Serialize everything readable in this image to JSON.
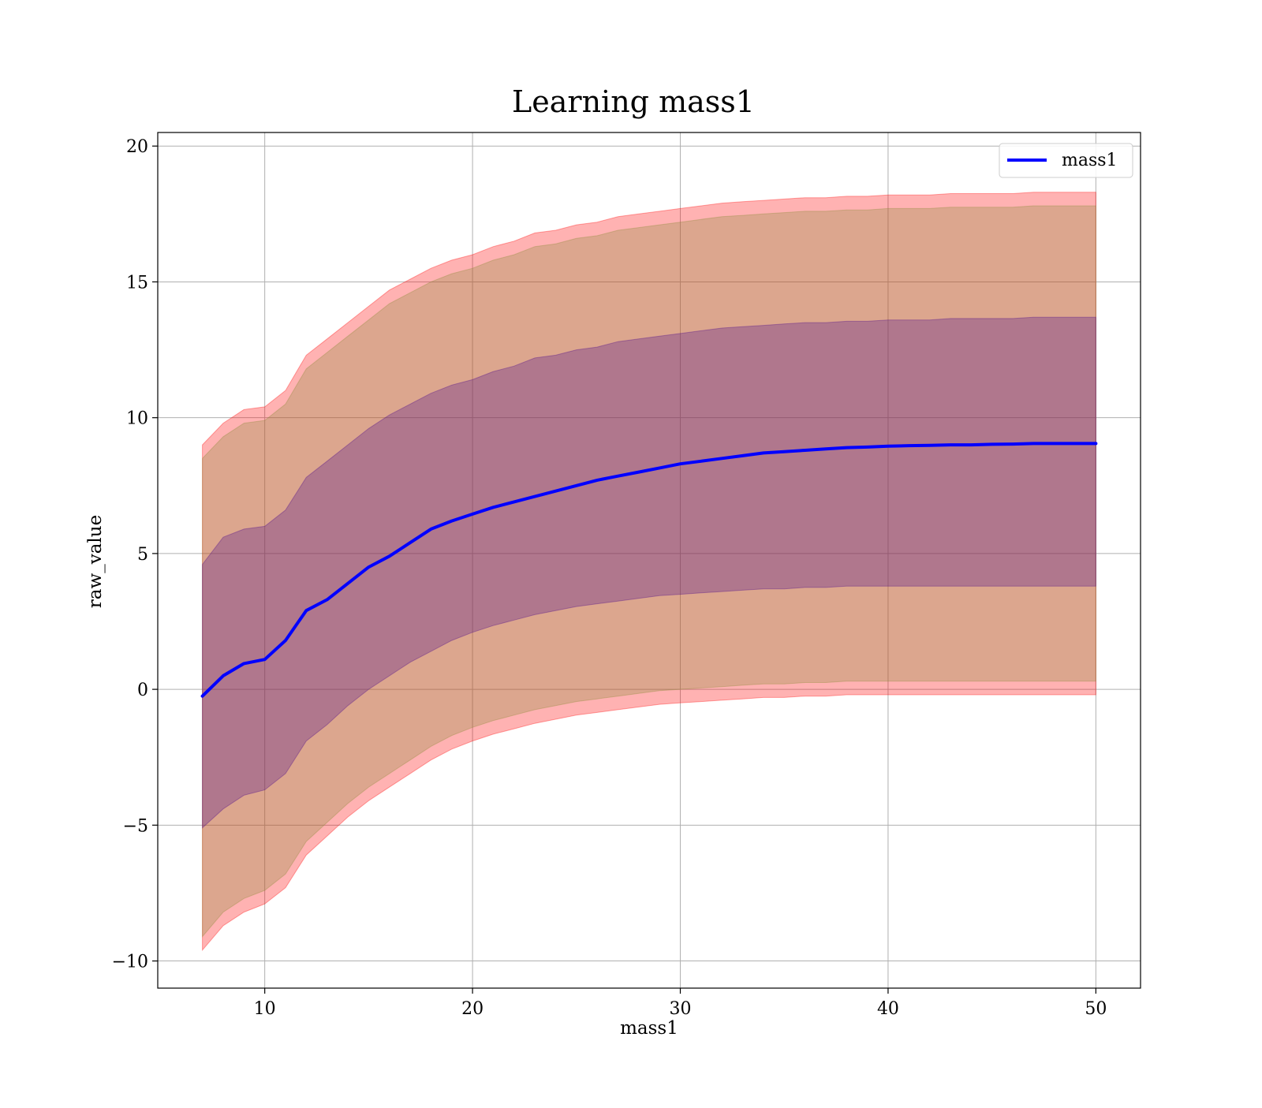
{
  "chart_data": {
    "type": "area",
    "title": "Learning mass1",
    "xlabel": "mass1",
    "ylabel": "raw_value",
    "xlim": [
      4.85,
      52.15
    ],
    "ylim": [
      -11,
      20.5
    ],
    "xticks": [
      10,
      20,
      30,
      40,
      50
    ],
    "yticks": [
      -10,
      -5,
      0,
      5,
      10,
      15,
      20
    ],
    "xtick_labels": [
      "10",
      "20",
      "30",
      "40",
      "50"
    ],
    "ytick_labels": [
      "−10",
      "−5",
      "0",
      "5",
      "10",
      "15",
      "20"
    ],
    "grid": true,
    "legend": {
      "position": "upper right",
      "entries": [
        "mass1"
      ]
    },
    "x": [
      7,
      8,
      9,
      10,
      11,
      12,
      13,
      14,
      15,
      16,
      17,
      18,
      19,
      20,
      21,
      22,
      23,
      24,
      25,
      26,
      27,
      28,
      29,
      30,
      31,
      32,
      33,
      34,
      35,
      36,
      37,
      38,
      39,
      40,
      41,
      42,
      43,
      44,
      45,
      46,
      47,
      48,
      49,
      50
    ],
    "series": [
      {
        "name": "mass1",
        "color": "#0000ff",
        "values": [
          -0.25,
          0.5,
          0.95,
          1.1,
          1.8,
          2.9,
          3.3,
          3.9,
          4.5,
          4.9,
          5.4,
          5.9,
          6.2,
          6.45,
          6.7,
          6.9,
          7.1,
          7.3,
          7.5,
          7.7,
          7.85,
          8.0,
          8.15,
          8.3,
          8.4,
          8.5,
          8.6,
          8.7,
          8.75,
          8.8,
          8.85,
          8.9,
          8.92,
          8.95,
          8.97,
          8.98,
          9.0,
          9.0,
          9.02,
          9.03,
          9.05,
          9.05,
          9.05,
          9.05
        ]
      }
    ],
    "bands": [
      {
        "role": "outer",
        "fill_color": "#ff0000",
        "upper": [
          9.0,
          9.8,
          10.3,
          10.4,
          11.0,
          12.3,
          12.9,
          13.5,
          14.1,
          14.7,
          15.1,
          15.5,
          15.8,
          16.0,
          16.3,
          16.5,
          16.8,
          16.9,
          17.1,
          17.2,
          17.4,
          17.5,
          17.6,
          17.7,
          17.8,
          17.9,
          17.95,
          18.0,
          18.05,
          18.1,
          18.1,
          18.15,
          18.15,
          18.2,
          18.2,
          18.2,
          18.25,
          18.25,
          18.25,
          18.25,
          18.3,
          18.3,
          18.3,
          18.3
        ],
        "lower": [
          -9.6,
          -8.7,
          -8.2,
          -7.9,
          -7.3,
          -6.1,
          -5.4,
          -4.7,
          -4.1,
          -3.6,
          -3.1,
          -2.6,
          -2.2,
          -1.9,
          -1.65,
          -1.45,
          -1.25,
          -1.1,
          -0.95,
          -0.85,
          -0.75,
          -0.65,
          -0.55,
          -0.5,
          -0.45,
          -0.4,
          -0.35,
          -0.3,
          -0.3,
          -0.25,
          -0.25,
          -0.2,
          -0.2,
          -0.2,
          -0.2,
          -0.2,
          -0.2,
          -0.2,
          -0.2,
          -0.2,
          -0.2,
          -0.2,
          -0.2,
          -0.2
        ]
      },
      {
        "role": "middle",
        "fill_color": "#8b8b3a",
        "upper": [
          8.5,
          9.3,
          9.8,
          9.9,
          10.5,
          11.8,
          12.4,
          13.0,
          13.6,
          14.2,
          14.6,
          15.0,
          15.3,
          15.5,
          15.8,
          16.0,
          16.3,
          16.4,
          16.6,
          16.7,
          16.9,
          17.0,
          17.1,
          17.2,
          17.3,
          17.4,
          17.45,
          17.5,
          17.55,
          17.6,
          17.6,
          17.65,
          17.65,
          17.7,
          17.7,
          17.7,
          17.75,
          17.75,
          17.75,
          17.75,
          17.8,
          17.8,
          17.8,
          17.8
        ],
        "lower": [
          -9.1,
          -8.2,
          -7.7,
          -7.4,
          -6.8,
          -5.6,
          -4.9,
          -4.2,
          -3.6,
          -3.1,
          -2.6,
          -2.1,
          -1.7,
          -1.4,
          -1.15,
          -0.95,
          -0.75,
          -0.6,
          -0.45,
          -0.35,
          -0.25,
          -0.15,
          -0.05,
          0.0,
          0.05,
          0.1,
          0.15,
          0.2,
          0.2,
          0.25,
          0.25,
          0.3,
          0.3,
          0.3,
          0.3,
          0.3,
          0.3,
          0.3,
          0.3,
          0.3,
          0.3,
          0.3,
          0.3,
          0.3
        ]
      },
      {
        "role": "inner",
        "fill_color": "#4b0a8c",
        "upper": [
          4.6,
          5.6,
          5.9,
          6.0,
          6.6,
          7.8,
          8.4,
          9.0,
          9.6,
          10.1,
          10.5,
          10.9,
          11.2,
          11.4,
          11.7,
          11.9,
          12.2,
          12.3,
          12.5,
          12.6,
          12.8,
          12.9,
          13.0,
          13.1,
          13.2,
          13.3,
          13.35,
          13.4,
          13.45,
          13.5,
          13.5,
          13.55,
          13.55,
          13.6,
          13.6,
          13.6,
          13.65,
          13.65,
          13.65,
          13.65,
          13.7,
          13.7,
          13.7,
          13.7
        ],
        "lower": [
          -5.1,
          -4.4,
          -3.9,
          -3.7,
          -3.1,
          -1.9,
          -1.3,
          -0.6,
          0.0,
          0.5,
          1.0,
          1.4,
          1.8,
          2.1,
          2.35,
          2.55,
          2.75,
          2.9,
          3.05,
          3.15,
          3.25,
          3.35,
          3.45,
          3.5,
          3.55,
          3.6,
          3.65,
          3.7,
          3.7,
          3.75,
          3.75,
          3.8,
          3.8,
          3.8,
          3.8,
          3.8,
          3.8,
          3.8,
          3.8,
          3.8,
          3.8,
          3.8,
          3.8,
          3.8
        ]
      }
    ]
  }
}
